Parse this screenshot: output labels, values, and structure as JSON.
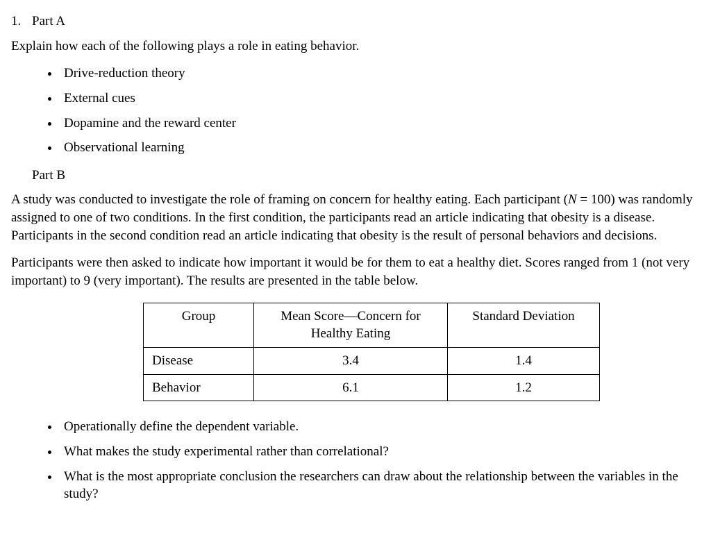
{
  "question_number": "1.",
  "partA": {
    "label": "Part A",
    "prompt": "Explain how each of the following plays a role in eating behavior.",
    "items": [
      "Drive-reduction theory",
      "External cues",
      "Dopamine and the reward center",
      "Observational learning"
    ]
  },
  "partB": {
    "label": "Part B",
    "para1_pre": "A study was conducted to investigate the role of framing on concern for healthy eating. Each participant (",
    "para1_N": "N",
    "para1_post": " = 100) was randomly assigned to one of two conditions. In the first condition, the participants read an article indicating that obesity is a disease. Participants in the second condition read an article indicating that obesity is the result of personal behaviors and decisions.",
    "para2": "Participants were then asked to indicate how important it would be for them to eat a healthy diet. Scores ranged from 1 (not very important) to 9 (very important). The results are presented in the table below.",
    "table": {
      "columns": [
        "Group",
        "Mean Score—Concern for Healthy Eating",
        "Standard Deviation"
      ],
      "rows": [
        [
          "Disease",
          "3.4",
          "1.4"
        ],
        [
          "Behavior",
          "6.1",
          "1.2"
        ]
      ],
      "border_color": "#000000",
      "background_color": "#ffffff",
      "font_size_pt": 14
    },
    "questions": [
      "Operationally define the dependent variable.",
      "What makes the study experimental rather than correlational?",
      "What is the most appropriate conclusion the researchers can draw about the relationship between the variables in the study?"
    ]
  },
  "styling": {
    "font_family": "Times New Roman",
    "body_font_size_pt": 14,
    "text_color": "#000000",
    "background_color": "#ffffff",
    "bullet_style": "disc"
  }
}
